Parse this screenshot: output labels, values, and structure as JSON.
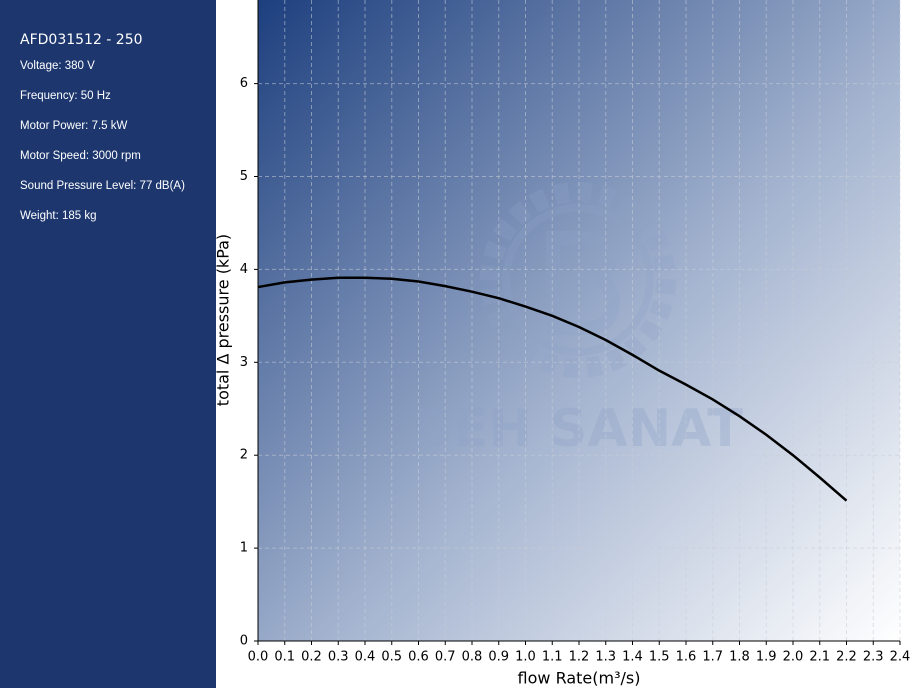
{
  "sidebar": {
    "title": "AFD031512 - 250",
    "specs": [
      "Voltage: 380 V",
      "Frequency: 50 Hz",
      "Motor Power: 7.5 kW",
      "Motor Speed: 3000 rpm",
      "Sound Pressure Level: 77 dB(A)",
      "Weight: 185 kg"
    ]
  },
  "chart_data": {
    "type": "line",
    "x_label": "flow Rate(m³/s)",
    "y_label": "total Δ pressure (kPa)",
    "watermark": "BEH SANAT",
    "x": [
      0,
      0.1,
      0.2,
      0.3,
      0.4,
      0.5,
      0.6,
      0.7,
      0.8,
      0.9,
      1.0,
      1.1,
      1.2,
      1.3,
      1.4,
      1.5,
      1.6,
      1.7,
      1.8,
      1.9,
      2.0,
      2.1,
      2.2
    ],
    "series": [
      {
        "color": "#000000",
        "values": [
          3.81,
          3.86,
          3.89,
          3.91,
          3.91,
          3.9,
          3.87,
          3.82,
          3.76,
          3.69,
          3.6,
          3.5,
          3.38,
          3.24,
          3.08,
          2.91,
          2.76,
          2.6,
          2.42,
          2.22,
          2.0,
          1.76,
          1.51
        ]
      }
    ],
    "xlim": [
      0,
      2.4
    ],
    "ylim": [
      0,
      6.9
    ],
    "xticks": [
      {
        "value": 0,
        "label": "0.0"
      },
      0.1,
      0.2,
      0.3,
      0.4,
      0.5,
      0.6,
      0.7,
      0.8,
      0.9,
      {
        "value": 1,
        "label": "1.0"
      },
      1.1,
      1.2,
      1.3,
      1.4,
      1.5,
      1.6,
      1.7,
      1.8,
      1.9,
      {
        "value": 2,
        "label": "2.0"
      },
      2.1,
      2.2,
      2.3,
      2.4
    ],
    "yticks": [
      0,
      1,
      2,
      3,
      4,
      5,
      6
    ],
    "grid": true
  }
}
